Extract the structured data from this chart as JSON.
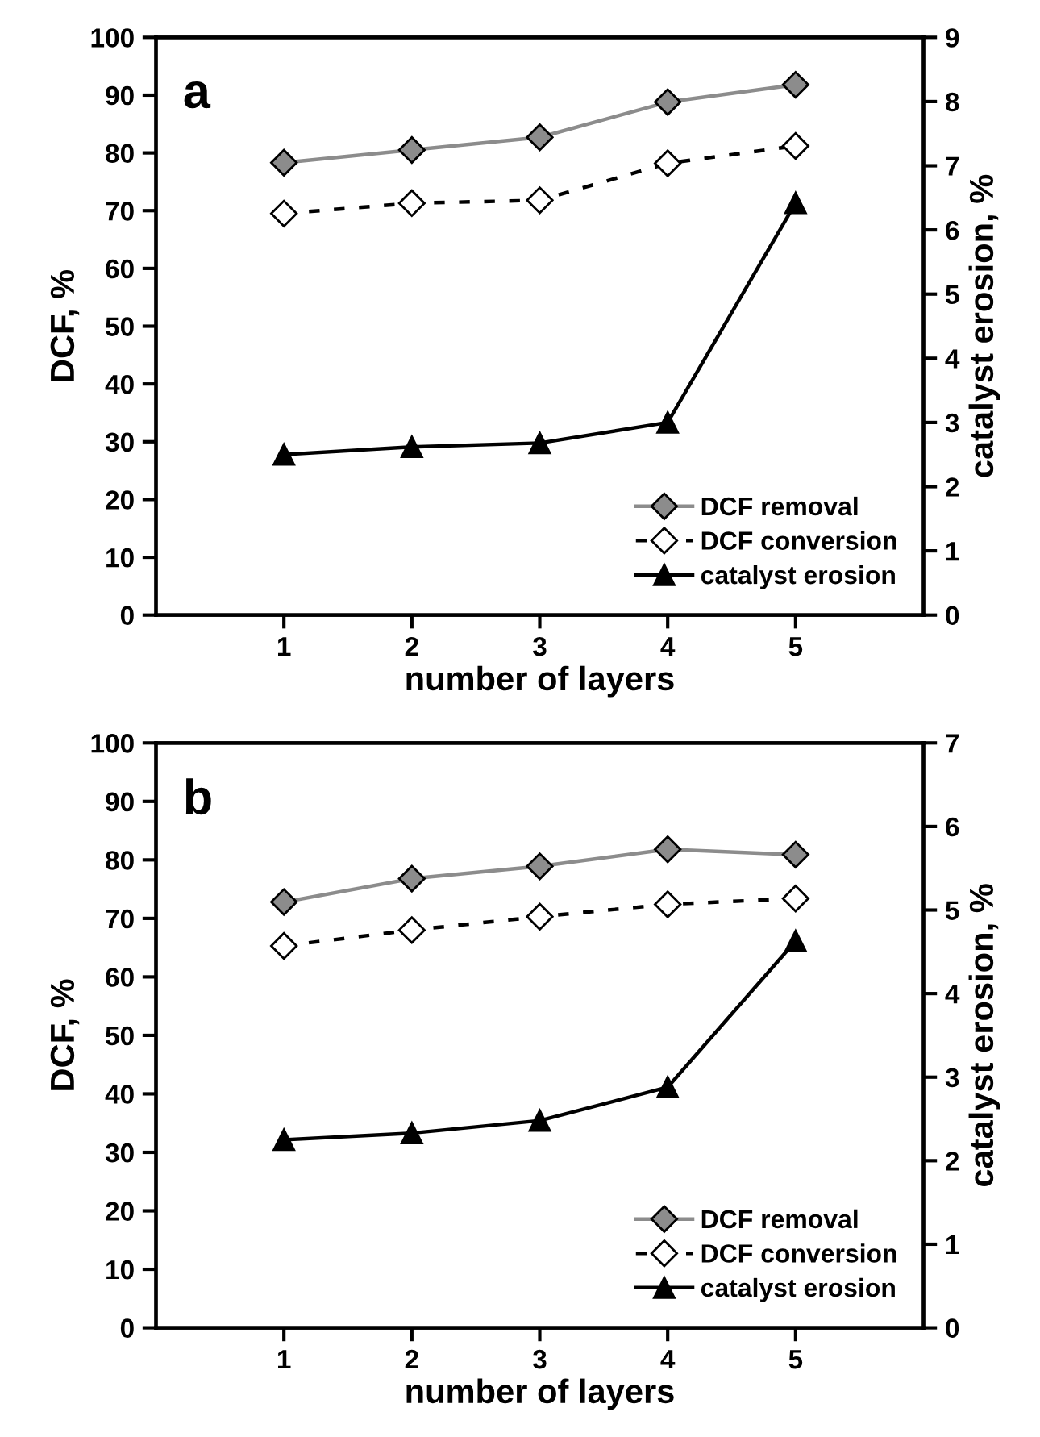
{
  "chart_data": [
    {
      "type": "line",
      "annotations": [
        "a"
      ],
      "xlabel": "number of layers",
      "ylabel": "DCF, %",
      "y2label": "catalyst erosion, %",
      "x": [
        1,
        2,
        3,
        4,
        5
      ],
      "xlim": [
        0,
        6
      ],
      "xticks": [
        1,
        2,
        3,
        4,
        5
      ],
      "ylim": [
        0,
        100
      ],
      "yticks": [
        0,
        10,
        20,
        30,
        40,
        50,
        60,
        70,
        80,
        90,
        100
      ],
      "y2lim": [
        0,
        9
      ],
      "y2ticks": [
        0,
        1,
        2,
        3,
        4,
        5,
        6,
        7,
        8,
        9
      ],
      "legend": "bottom right",
      "grid": false,
      "series": [
        {
          "name": "DCF removal",
          "color": "#8c8c8c",
          "marker": "diamond",
          "line_style": "solid",
          "values": [
            78.3,
            80.5,
            82.7,
            88.8,
            91.8
          ]
        },
        {
          "name": "DCF conversion",
          "color": "#000000",
          "marker": "diamond",
          "line_style": "dashed",
          "values": [
            69.5,
            71.3,
            71.8,
            78.2,
            81.2
          ]
        },
        {
          "name": "catalyst erosion",
          "color": "#000000",
          "marker": "triangle",
          "line_style": "solid",
          "axis": "y2",
          "values": [
            2.5,
            2.62,
            2.68,
            3.0,
            6.42
          ]
        }
      ]
    },
    {
      "type": "line",
      "annotations": [
        "b"
      ],
      "xlabel": "number of layers",
      "ylabel": "DCF, %",
      "y2label": "catalyst erosion, %",
      "x": [
        1,
        2,
        3,
        4,
        5
      ],
      "xlim": [
        0,
        6
      ],
      "xticks": [
        1,
        2,
        3,
        4,
        5
      ],
      "ylim": [
        0,
        100
      ],
      "yticks": [
        0,
        10,
        20,
        30,
        40,
        50,
        60,
        70,
        80,
        90,
        100
      ],
      "y2lim": [
        0,
        7
      ],
      "y2ticks": [
        0,
        1,
        2,
        3,
        4,
        5,
        6,
        7
      ],
      "legend": "bottom right",
      "grid": false,
      "series": [
        {
          "name": "DCF removal",
          "color": "#8c8c8c",
          "marker": "diamond",
          "line_style": "solid",
          "values": [
            72.8,
            76.8,
            78.9,
            81.8,
            80.9
          ]
        },
        {
          "name": "DCF conversion",
          "color": "#000000",
          "marker": "diamond",
          "line_style": "dashed",
          "values": [
            65.3,
            68.0,
            70.3,
            72.4,
            73.4
          ]
        },
        {
          "name": "catalyst erosion",
          "color": "#000000",
          "marker": "triangle",
          "line_style": "solid",
          "axis": "y2",
          "values": [
            2.25,
            2.33,
            2.48,
            2.88,
            4.63
          ]
        }
      ]
    }
  ]
}
